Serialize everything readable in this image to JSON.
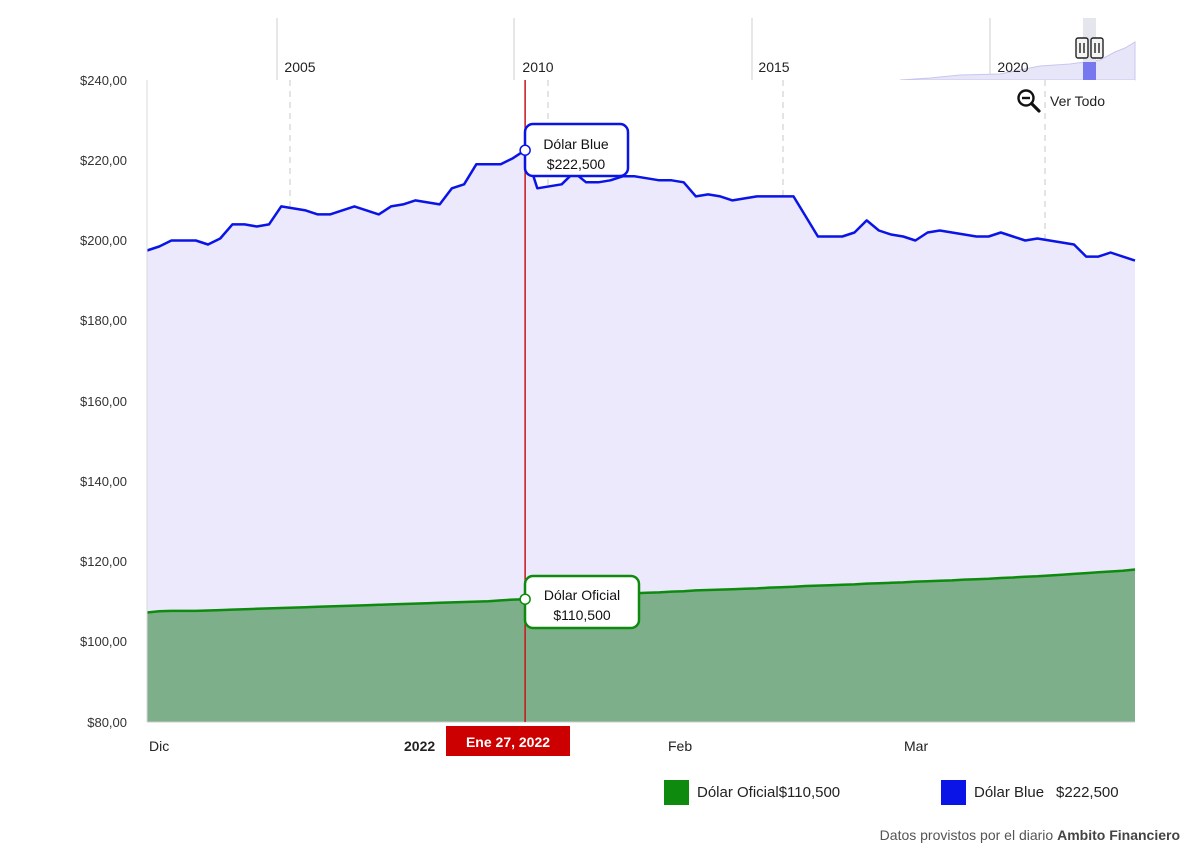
{
  "chart_data": {
    "type": "area",
    "x_labels": [
      "Dic",
      "2022",
      "Feb",
      "Mar"
    ],
    "navigator_years": [
      "2005",
      "2010",
      "2015",
      "2020"
    ],
    "y_ticks": [
      "$240,00",
      "$220,00",
      "$200,00",
      "$180,00",
      "$160,00",
      "$140,00",
      "$120,00",
      "$100,00",
      "$80,00"
    ],
    "ylim": [
      80,
      240
    ],
    "series": [
      {
        "name": "Dólar Blue",
        "color": "#0a14e6",
        "fill": "#ebe9fb",
        "values": [
          197.5,
          198.5,
          200,
          200,
          200,
          199,
          200.5,
          204,
          204,
          203.5,
          204,
          208.5,
          208,
          207.5,
          206.5,
          206.5,
          207.5,
          208.5,
          207.5,
          206.5,
          208.5,
          209,
          210,
          209.5,
          209,
          213,
          214,
          219,
          219,
          219,
          220.5,
          222.5,
          213,
          213.5,
          214,
          217,
          214.5,
          214.5,
          215,
          216,
          216,
          215.5,
          215,
          215,
          214.5,
          211,
          211.5,
          211,
          210,
          210.5,
          211,
          211,
          211,
          211,
          206,
          201,
          201,
          201,
          202,
          205,
          202.5,
          201.5,
          201,
          200,
          202,
          202.5,
          202,
          201.5,
          201,
          201,
          202,
          201,
          200,
          200.5,
          200,
          199.5,
          199,
          196,
          196,
          197,
          196,
          195
        ]
      },
      {
        "name": "Dólar Oficial",
        "color": "#0e8a0e",
        "fill": "#7db08a",
        "values": [
          107.3,
          107.6,
          107.7,
          107.7,
          107.7,
          107.8,
          107.9,
          108,
          108.1,
          108.2,
          108.3,
          108.4,
          108.5,
          108.6,
          108.7,
          108.8,
          108.9,
          109,
          109.1,
          109.2,
          109.3,
          109.4,
          109.5,
          109.6,
          109.7,
          109.8,
          109.9,
          110,
          110.1,
          110.3,
          110.5,
          110.6,
          110.8,
          111,
          111.2,
          111.4,
          111.5,
          111.7,
          111.9,
          112,
          112.1,
          112.2,
          112.3,
          112.5,
          112.6,
          112.8,
          112.9,
          113,
          113.1,
          113.2,
          113.3,
          113.5,
          113.6,
          113.7,
          113.9,
          114,
          114.1,
          114.2,
          114.3,
          114.5,
          114.6,
          114.7,
          114.8,
          115,
          115.1,
          115.2,
          115.3,
          115.5,
          115.6,
          115.7,
          115.9,
          116,
          116.2,
          116.3,
          116.5,
          116.7,
          116.9,
          117.1,
          117.3,
          117.5,
          117.7,
          118
        ]
      }
    ],
    "crosshair": {
      "label": "Ene 27, 2022",
      "index": 31
    },
    "tooltips": [
      {
        "series": "Dólar Blue",
        "value_label": "$222,500",
        "color": "#0a14e6"
      },
      {
        "series": "Dólar Oficial",
        "value_label": "$110,500",
        "color": "#0e8a0e"
      }
    ]
  },
  "controls": {
    "ver_todo": "Ver Todo"
  },
  "legend": [
    {
      "name": "Dólar Oficial",
      "value": "$110,500",
      "color": "#0e8a0e"
    },
    {
      "name": "Dólar Blue",
      "value": "$222,500",
      "color": "#0a14e6"
    }
  ],
  "source": {
    "prefix": "Datos provistos por el diario ",
    "name": "Ambito Financiero"
  }
}
